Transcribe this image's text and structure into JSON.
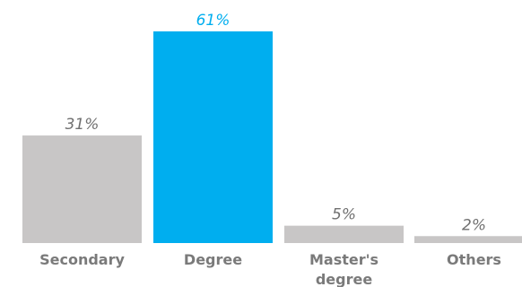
{
  "chart_data": {
    "type": "bar",
    "categories": [
      "Secondary",
      "Degree",
      "Master's degree",
      "Others"
    ],
    "category_lines": [
      [
        "Secondary"
      ],
      [
        "Degree"
      ],
      [
        "Master's",
        "degree"
      ],
      [
        "Others"
      ]
    ],
    "values": [
      31,
      61,
      5,
      2
    ],
    "value_labels": [
      "31%",
      "61%",
      "5%",
      "2%"
    ],
    "unit": "%",
    "title": "",
    "xlabel": "",
    "ylabel": "",
    "ylim": [
      0,
      61
    ],
    "grid": false,
    "legend": "none",
    "colors": {
      "default_bar": "#c8c6c6",
      "highlight_bar": "#00aeef",
      "default_label": "#707070",
      "highlight_label": "#00aeef",
      "category_label": "#7a7a7a"
    },
    "highlight_index": 1
  }
}
